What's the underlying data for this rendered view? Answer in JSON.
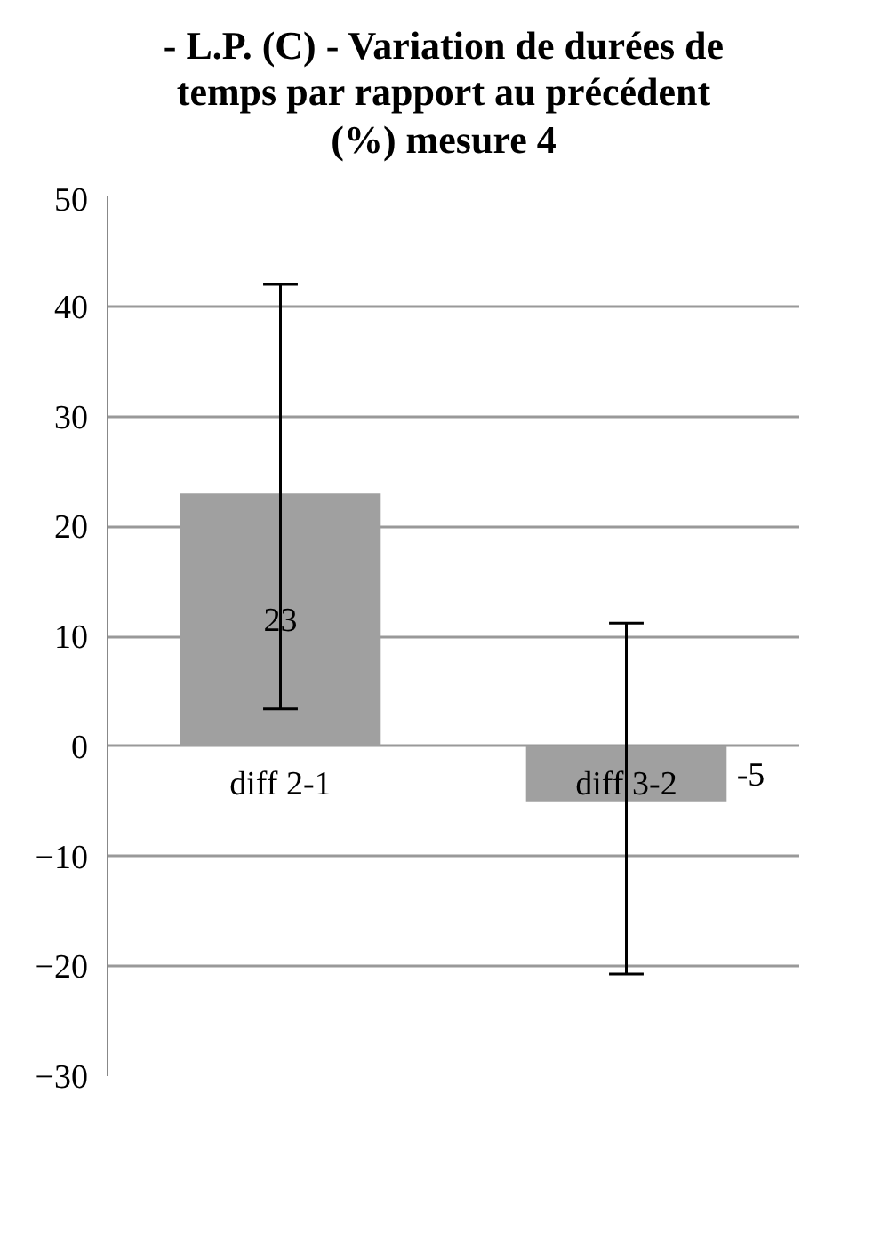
{
  "chart_data": {
    "type": "bar",
    "title": "- L.P. (C) - Variation de durées de temps par rapport au précédent (%) mesure 4",
    "categories": [
      "diff 2-1",
      "diff 3-2"
    ],
    "values": [
      23,
      -5
    ],
    "errors": [
      [
        3.4,
        42
      ],
      [
        -20.7,
        11.2
      ]
    ],
    "color": "#a0a0a0",
    "data_labels": true,
    "ylim": [
      -30,
      50
    ],
    "yticks": [
      -30,
      -20,
      -10,
      0,
      10,
      20,
      30,
      40,
      50
    ],
    "grid": "y"
  }
}
